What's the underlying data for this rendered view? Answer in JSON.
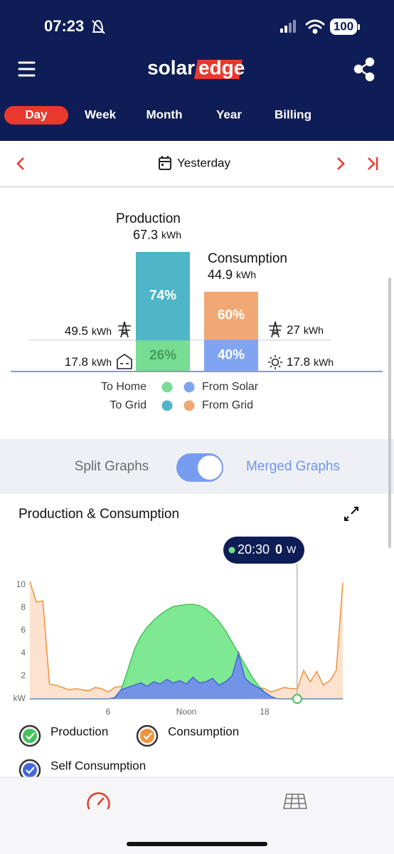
{
  "status_bar": {
    "time": "07:23",
    "battery": "100"
  },
  "header": {
    "logo_left": "solar",
    "logo_right": "edge"
  },
  "tabs": {
    "items": [
      "Day",
      "Week",
      "Month",
      "Year",
      "Billing"
    ],
    "active": 0
  },
  "date_nav": {
    "label": "Yesterday"
  },
  "summary": {
    "production": {
      "title": "Production",
      "total": 67.3,
      "unit": "kWh",
      "segments": [
        {
          "value": 74,
          "label": "74%",
          "amount": 49.5,
          "unit": "kWh",
          "color": "#4fb5c8"
        },
        {
          "value": 26,
          "label": "26%",
          "amount": 17.8,
          "unit": "kWh",
          "color": "#76dd92"
        }
      ]
    },
    "consumption": {
      "title": "Consumption",
      "total": 44.9,
      "unit": "kWh",
      "segments": [
        {
          "value": 60,
          "label": "60%",
          "amount": 27,
          "unit": "kWh",
          "color": "#f1a874"
        },
        {
          "value": 40,
          "label": "40%",
          "amount": 17.8,
          "unit": "kWh",
          "color": "#80a4f2"
        }
      ]
    },
    "legend": [
      {
        "label": "To Home",
        "color": "#76dd92"
      },
      {
        "label": "From Solar",
        "color": "#80a4f2"
      },
      {
        "label": "To Grid",
        "color": "#4fb5c8"
      },
      {
        "label": "From Grid",
        "color": "#f1a874"
      }
    ]
  },
  "view_toggle": {
    "left": "Split Graphs",
    "right": "Merged Graphs",
    "on": true
  },
  "chart_data": {
    "type": "area",
    "title": "Production & Consumption",
    "ylabel": "kW",
    "x": [
      0,
      0.5,
      1,
      1.5,
      2,
      2.5,
      3,
      3.5,
      4,
      4.5,
      5,
      5.5,
      6,
      6.5,
      7,
      7.5,
      8,
      8.5,
      9,
      9.5,
      10,
      10.5,
      11,
      11.5,
      12,
      12.5,
      13,
      13.5,
      14,
      14.5,
      15,
      15.5,
      16,
      16.5,
      17,
      17.5,
      18,
      18.5,
      19,
      19.5,
      20,
      20.5,
      21,
      21.5,
      22,
      22.5,
      23,
      23.5,
      24
    ],
    "series": [
      {
        "name": "Consumption",
        "color": "#f0923a",
        "fill": "#fde2d0",
        "values": [
          10.3,
          8.5,
          8.6,
          1.3,
          1.2,
          1.0,
          0.8,
          0.9,
          0.8,
          0.7,
          1.0,
          0.9,
          0.6,
          1.0,
          1.1,
          1.0,
          1.2,
          1.4,
          1.1,
          1.5,
          1.3,
          1.7,
          1.4,
          1.6,
          1.3,
          1.9,
          1.4,
          1.5,
          1.8,
          1.2,
          1.5,
          2.0,
          4.2,
          1.8,
          1.3,
          1.0,
          0.9,
          0.6,
          0.8,
          1.0,
          0.9,
          0.9,
          2.5,
          1.5,
          2.4,
          1.2,
          1.6,
          2.5,
          10.2
        ]
      },
      {
        "name": "Production",
        "color": "#43c35c",
        "fill": "#7fe892",
        "values": [
          0,
          0,
          0,
          0,
          0,
          0,
          0,
          0,
          0,
          0,
          0,
          0,
          0,
          0.1,
          0.8,
          2.5,
          4.3,
          5.5,
          6.3,
          6.9,
          7.4,
          7.8,
          8.1,
          8.2,
          8.3,
          8.3,
          8.2,
          7.9,
          7.4,
          6.8,
          6.0,
          5.0,
          4.0,
          3.0,
          2.0,
          1.2,
          0.6,
          0.2,
          0,
          0,
          0,
          0,
          0,
          0,
          0,
          0,
          0,
          0,
          0
        ]
      },
      {
        "name": "Self Consumption",
        "color": "#4467d8",
        "fill": "#7393e6",
        "values": [
          0,
          0,
          0,
          0,
          0,
          0,
          0,
          0,
          0,
          0,
          0,
          0,
          0,
          0.1,
          0.8,
          1.0,
          1.2,
          1.4,
          1.1,
          1.5,
          1.3,
          1.7,
          1.4,
          1.6,
          1.3,
          1.9,
          1.4,
          1.5,
          1.8,
          1.2,
          1.5,
          2.0,
          4.0,
          1.8,
          1.3,
          1.0,
          0.6,
          0.2,
          0,
          0,
          0,
          0,
          0,
          0,
          0,
          0,
          0,
          0,
          0
        ]
      }
    ],
    "xlim": [
      0,
      24
    ],
    "xticks": [
      6,
      {
        "value": 12,
        "label": "Noon"
      },
      18
    ],
    "ylim": [
      0,
      11
    ],
    "yticks": [
      2,
      4,
      6,
      8,
      10
    ],
    "tooltip": {
      "time": "20:30",
      "value": 0,
      "unit": "W"
    }
  }
}
